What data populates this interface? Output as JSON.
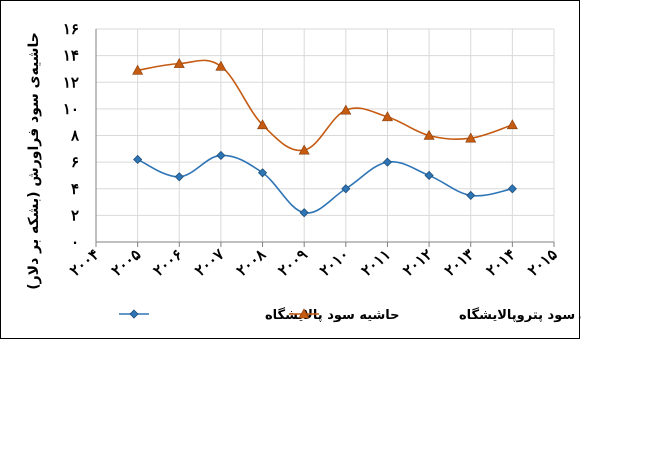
{
  "chart_data": {
    "type": "line",
    "categories": [
      "۲۰۰۴",
      "۲۰۰۵",
      "۲۰۰۶",
      "۲۰۰۷",
      "۲۰۰۸",
      "۲۰۰۹",
      "۲۰۱۰",
      "۲۰۱۱",
      "۲۰۱۲",
      "۲۰۱۳",
      "۲۰۱۴",
      "۲۰۱۵"
    ],
    "x": [
      2004,
      2005,
      2006,
      2007,
      2008,
      2009,
      2010,
      2011,
      2012,
      2013,
      2014,
      2015
    ],
    "series": [
      {
        "name": "حاشیه سود پالایشگاه",
        "color": "#2e75b6",
        "marker": "diamond",
        "x": [
          2005,
          2006,
          2007,
          2008,
          2009,
          2010,
          2011,
          2012,
          2013,
          2014
        ],
        "values": [
          6.2,
          4.9,
          6.5,
          5.2,
          2.2,
          4.0,
          6.0,
          5.0,
          3.5,
          4.0
        ]
      },
      {
        "name": "حاشیه سود پتروپالایشگاه",
        "color": "#c55a11",
        "marker": "triangle",
        "x": [
          2005,
          2006,
          2007,
          2008,
          2009,
          2010,
          2011,
          2012,
          2013,
          2014
        ],
        "values": [
          12.9,
          13.4,
          13.2,
          8.8,
          6.9,
          9.9,
          9.4,
          8.0,
          7.8,
          8.8
        ]
      }
    ],
    "yticks": [
      "۰",
      "۲",
      "۴",
      "۶",
      "۸",
      "۱۰",
      "۱۲",
      "۱۴",
      "۱۶"
    ],
    "ylim": [
      0,
      16
    ],
    "ytick_step": 2,
    "ylabel": "حاشیه‌ی سود فراورش (بشکه بر دلار)",
    "xlabel": "",
    "title": "",
    "grid": "both",
    "legend": "bottom"
  }
}
